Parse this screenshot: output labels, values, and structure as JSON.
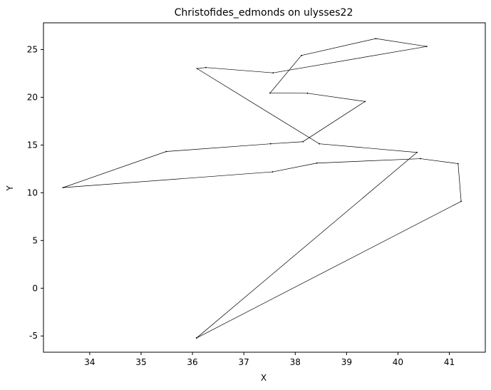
{
  "chart_data": {
    "type": "line",
    "title": "Christofides_edmonds on ulysses22",
    "xlabel": "X",
    "ylabel": "Y",
    "xlim": [
      33.1,
      41.7
    ],
    "ylim": [
      -6.7,
      27.8
    ],
    "xticks": [
      34,
      35,
      36,
      37,
      38,
      39,
      40,
      41
    ],
    "yticks": [
      -5,
      0,
      5,
      10,
      15,
      20,
      25
    ],
    "grid": false,
    "legend": "none",
    "line_color": "#000000",
    "series": [
      {
        "x": [
          36.08,
          41.23,
          41.17,
          40.44,
          38.42,
          37.56,
          33.48,
          35.49,
          37.52,
          38.15,
          39.36,
          38.24,
          37.51,
          38.12,
          39.57,
          40.56,
          37.57,
          36.26,
          36.09,
          38.47,
          40.37,
          36.08
        ],
        "y": [
          -5.21,
          9.1,
          13.05,
          13.57,
          13.11,
          12.19,
          10.54,
          14.32,
          15.13,
          15.35,
          19.56,
          20.42,
          20.44,
          24.38,
          26.15,
          25.32,
          22.56,
          23.12,
          23.0,
          15.13,
          14.23,
          -5.21
        ]
      }
    ]
  }
}
